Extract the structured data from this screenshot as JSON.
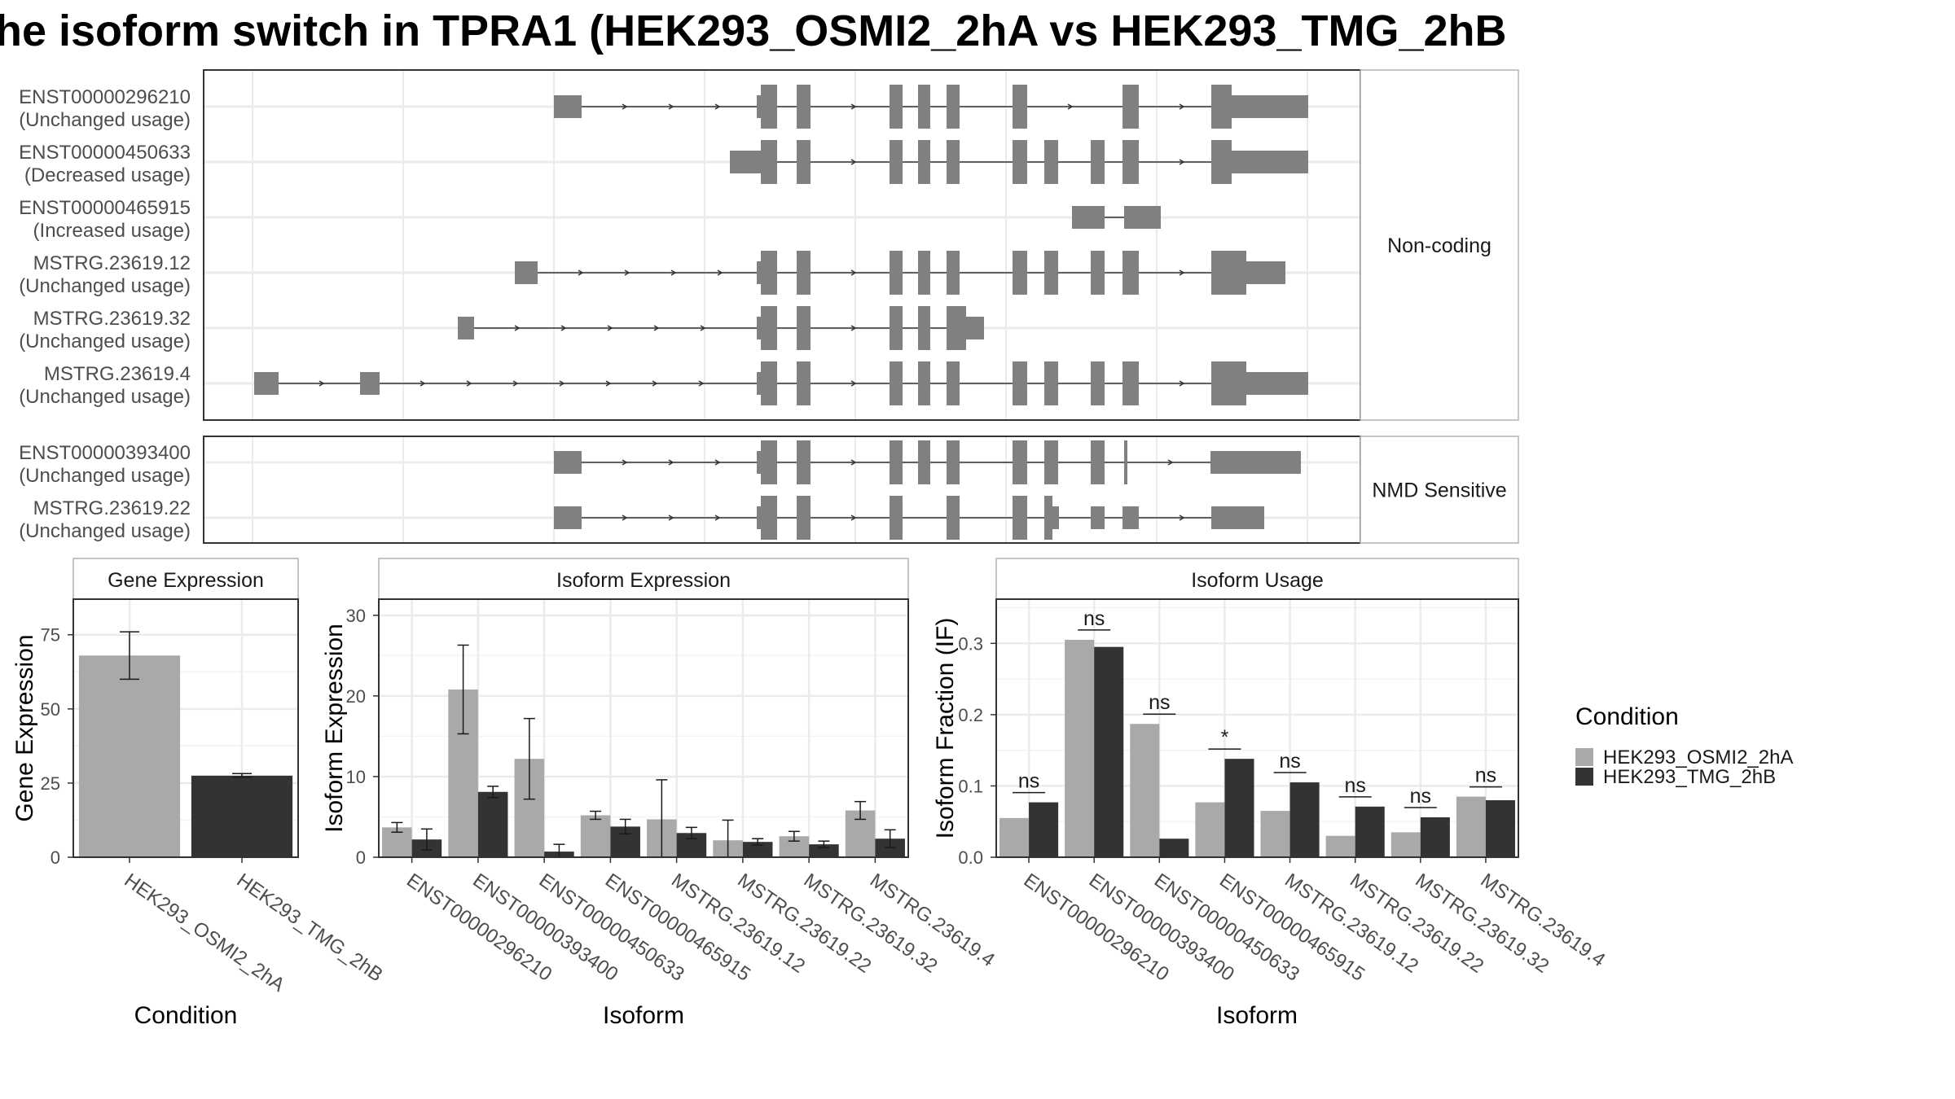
{
  "title": "he isoform switch in TPRA1 (HEK293_OSMI2_2hA vs HEK293_TMG_2hB",
  "colors": {
    "osmi": "#a9a9a9",
    "tmg": "#333333",
    "exon": "#808080",
    "strip": "#ffffff",
    "grid": "#ebebeb"
  },
  "structure": {
    "groups": [
      {
        "label": "Non-coding",
        "isoforms": [
          {
            "id": "ENST00000296210",
            "usage": "(Unchanged usage)"
          },
          {
            "id": "ENST00000450633",
            "usage": "(Decreased usage)"
          },
          {
            "id": "ENST00000465915",
            "usage": "(Increased usage)"
          },
          {
            "id": "MSTRG.23619.12",
            "usage": "(Unchanged usage)"
          },
          {
            "id": "MSTRG.23619.32",
            "usage": "(Unchanged usage)"
          },
          {
            "id": "MSTRG.23619.4",
            "usage": "(Unchanged usage)"
          }
        ]
      },
      {
        "label": "NMD Sensitive",
        "isoforms": [
          {
            "id": "ENST00000393400",
            "usage": "(Unchanged usage)"
          },
          {
            "id": "MSTRG.23619.22",
            "usage": "(Unchanged usage)"
          }
        ]
      }
    ]
  },
  "chart_data": [
    {
      "type": "bar",
      "panel": "Gene Expression",
      "xlabel": "Condition",
      "ylabel": "Gene Expression",
      "ylim": [
        0,
        87
      ],
      "yticks": [
        0,
        25,
        50,
        75
      ],
      "categories": [
        "HEK293_OSMI2_2hA",
        "HEK293_TMG_2hB"
      ],
      "values": [
        68,
        27.5
      ],
      "error_low": [
        60,
        27
      ],
      "error_high": [
        76,
        28.2
      ]
    },
    {
      "type": "bar",
      "panel": "Isoform Expression",
      "xlabel": "Isoform",
      "ylabel": "Isoform Expression",
      "ylim": [
        0,
        32
      ],
      "yticks": [
        0,
        10,
        20,
        30
      ],
      "categories": [
        "ENST00000296210",
        "ENST00000393400",
        "ENST00000450633",
        "ENST00000465915",
        "MSTRG.23619.12",
        "MSTRG.23619.22",
        "MSTRG.23619.32",
        "MSTRG.23619.4"
      ],
      "series": [
        {
          "name": "HEK293_OSMI2_2hA",
          "values": [
            3.7,
            20.8,
            12.2,
            5.2,
            4.7,
            2.1,
            2.6,
            5.8
          ],
          "error_low": [
            3.1,
            15.3,
            7.2,
            4.7,
            0.0,
            0.0,
            2.0,
            4.7
          ],
          "error_high": [
            4.3,
            26.3,
            17.2,
            5.7,
            9.6,
            4.6,
            3.2,
            6.9
          ]
        },
        {
          "name": "HEK293_TMG_2hB",
          "values": [
            2.2,
            8.1,
            0.7,
            3.8,
            3.0,
            1.9,
            1.6,
            2.3
          ],
          "error_low": [
            0.9,
            7.4,
            0.0,
            2.9,
            2.3,
            1.5,
            1.2,
            1.2
          ],
          "error_high": [
            3.5,
            8.8,
            1.6,
            4.7,
            3.7,
            2.3,
            2.0,
            3.4
          ]
        }
      ]
    },
    {
      "type": "bar",
      "panel": "Isoform Usage",
      "xlabel": "Isoform",
      "ylabel": "Isoform Fraction (IF)",
      "ylim": [
        0,
        0.362
      ],
      "yticks": [
        0,
        0.1,
        0.2,
        0.3
      ],
      "ytick_labels": [
        "0.0",
        "0.1",
        "0.2",
        "0.3"
      ],
      "categories": [
        "ENST00000296210",
        "ENST00000393400",
        "ENST00000450633",
        "ENST00000465915",
        "MSTRG.23619.12",
        "MSTRG.23619.22",
        "MSTRG.23619.32",
        "MSTRG.23619.4"
      ],
      "series": [
        {
          "name": "HEK293_OSMI2_2hA",
          "values": [
            0.055,
            0.305,
            0.187,
            0.077,
            0.065,
            0.03,
            0.035,
            0.085
          ]
        },
        {
          "name": "HEK293_TMG_2hB",
          "values": [
            0.077,
            0.295,
            0.026,
            0.138,
            0.105,
            0.071,
            0.056,
            0.08
          ]
        }
      ],
      "significance": [
        "ns",
        "ns",
        "ns",
        "*",
        "ns",
        "ns",
        "ns",
        "ns"
      ]
    }
  ],
  "legend": {
    "title": "Condition",
    "items": [
      "HEK293_OSMI2_2hA",
      "HEK293_TMG_2hB"
    ]
  }
}
